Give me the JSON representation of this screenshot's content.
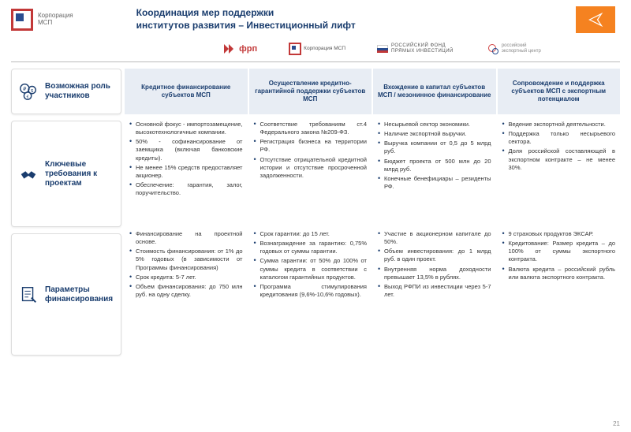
{
  "logo": {
    "line1": "Корпорация",
    "line2": "МСП"
  },
  "title": {
    "line1": "Координация мер поддержки",
    "line2": "институтов развития – Инвестиционный лифт"
  },
  "partners": {
    "frp": "фрп",
    "msp": "Корпорация МСП",
    "rfpi": "РОССИЙСКИЙ ФОНД\nПРЯМЫХ ИНВЕСТИЦИЙ",
    "rec": "российский экспортный центр"
  },
  "sidebar": [
    {
      "label": "Возможная роль участников"
    },
    {
      "label": "Ключевые требования к проектам"
    },
    {
      "label": "Параметры финансирования"
    }
  ],
  "columns": [
    {
      "head": "Кредитное финансирование субъектов МСП",
      "req": [
        "Основной фокус - импортозамещение, высокотехнологичные компании.",
        "50% - софинансирование от заемщика (включая банковские кредиты).",
        "Не менее 15% средств предоставляет акционер.",
        "Обеспечение: гарантия, залог, поручительство."
      ],
      "fin": [
        "Финансирование на проектной основе.",
        "Стоимость финансирования: от 1% до 5% годовых (в зависимости от Программы финансирования)",
        "Срок кредита: 5-7 лет.",
        "Объем финансирования: до 750 млн руб. на одну сделку."
      ]
    },
    {
      "head": "Осуществление кредитно-гарантийной поддержки субъектов МСП",
      "req": [
        "Соответствие требованиям ст.4 Федерального закона №209-ФЗ.",
        "Регистрация бизнеса на территории РФ.",
        "Отсутствие отрицательной кредитной истории и отсутствие просроченной задолженности."
      ],
      "fin": [
        "Срок гарантии: до 15 лет.",
        "Вознаграждение за гарантию: 0,75% годовых от суммы гарантии.",
        "Сумма гарантии: от 50% до 100% от суммы кредита в соответствии с каталогом гарантийных продуктов.",
        "Программа стимулирования кредитования (9,6%-10,6% годовых)."
      ]
    },
    {
      "head": "Вхождение в капитал субъектов МСП / мезонинное финансирование",
      "req": [
        "Несырьевой сектор экономики.",
        "Наличие экспортной выручки.",
        "Выручка компании от 0,5 до 5 млрд руб.",
        "Бюджет проекта от 500 млн до 20 млрд руб.",
        "Конечные бенефициары – резиденты РФ."
      ],
      "fin": [
        "Участие в акционерном капитале до 50%.",
        "Объем инвестирования: до 1 млрд руб. в один проект.",
        "Внутренняя норма доходности превышает 13,5% в рублях.",
        "Выход РФПИ из инвестиции через 5-7 лет."
      ]
    },
    {
      "head": "Сопровождение и поддержка субъектов МСП с экспортным потенциалом",
      "req": [
        "Ведение экспортной деятельности.",
        "Поддержка только несырьевого сектора.",
        "Доля российской составляющей в экспортном контракте – не менее 30%."
      ],
      "fin": [
        "9 страховых продуктов ЭКСАР.",
        "Кредитование: Размер кредита – до 100% от суммы экспортного контракта.",
        "Валюта кредита – российский рубль или валюта экспортного контракта."
      ]
    }
  ],
  "pageNumber": "21",
  "colors": {
    "accent_blue": "#1a3d6e",
    "accent_red": "#c23838",
    "accent_orange": "#f58220",
    "head_bg": "#e8edf4"
  }
}
